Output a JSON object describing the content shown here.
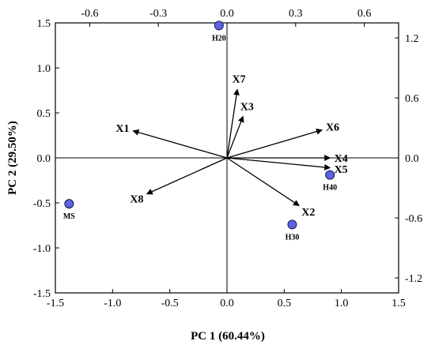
{
  "chart_data": {
    "type": "biplot",
    "xlabel": "PC 1 (60.44%)",
    "ylabel": "PC 2 (29.50%)",
    "xlim": [
      -1.5,
      1.5
    ],
    "ylim": [
      -1.5,
      1.5
    ],
    "x_ticks": [
      "-1.5",
      "-1.0",
      "-0.5",
      "0.0",
      "0.5",
      "1.0",
      "1.5"
    ],
    "y_ticks": [
      "-1.5",
      "-1.0",
      "-0.5",
      "0.0",
      "0.5",
      "1.0",
      "1.5"
    ],
    "top_axis": {
      "lim": [
        -0.75,
        0.75
      ],
      "ticks": [
        "-0.6",
        "-0.3",
        "0.0",
        "0.3",
        "0.6"
      ]
    },
    "right_axis": {
      "lim": [
        -1.35,
        1.35
      ],
      "ticks": [
        "-1.2",
        "-0.6",
        "0.0",
        "0.6",
        "1.2"
      ]
    },
    "point_color": "#5b63e6",
    "points": [
      {
        "label": "H20",
        "x": -0.07,
        "y": 1.47
      },
      {
        "label": "MS",
        "x": -1.38,
        "y": -0.51
      },
      {
        "label": "H30",
        "x": 0.57,
        "y": -0.74
      },
      {
        "label": "H40",
        "x": 0.9,
        "y": -0.19
      }
    ],
    "vectors": [
      {
        "label": "X1",
        "x": -0.82,
        "y": 0.3
      },
      {
        "label": "X2",
        "x": 0.63,
        "y": -0.53
      },
      {
        "label": "X3",
        "x": 0.14,
        "y": 0.46
      },
      {
        "label": "X4",
        "x": 0.9,
        "y": 0.0
      },
      {
        "label": "X5",
        "x": 0.9,
        "y": -0.11
      },
      {
        "label": "X6",
        "x": 0.83,
        "y": 0.31
      },
      {
        "label": "X7",
        "x": 0.09,
        "y": 0.76
      },
      {
        "label": "X8",
        "x": -0.7,
        "y": -0.4
      }
    ]
  }
}
